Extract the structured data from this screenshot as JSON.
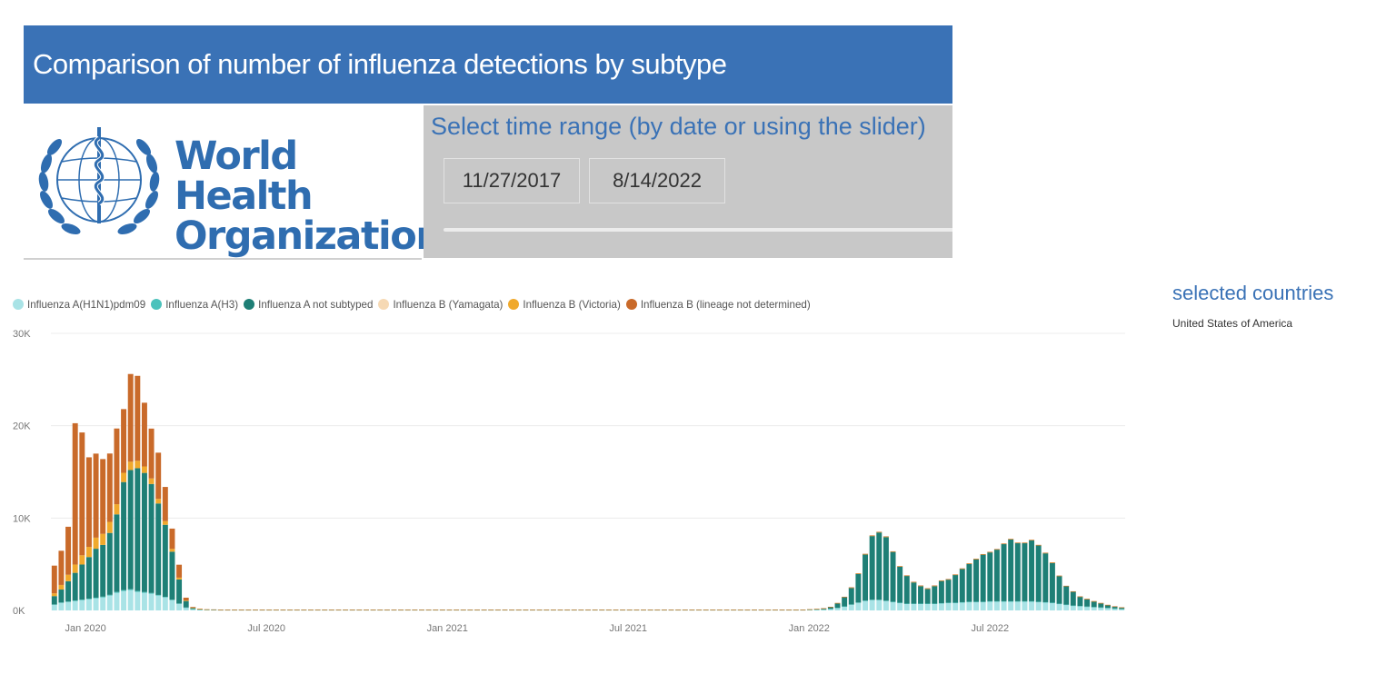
{
  "header": {
    "title": "Comparison of  number of influenza detections by subtype"
  },
  "logo": {
    "line1": "World Health",
    "line2": "Organization"
  },
  "slicer": {
    "title": "Select time range (by date or using the slider)",
    "start_date": "11/27/2017",
    "end_date": "8/14/2022"
  },
  "selected": {
    "title": "selected countries",
    "country": "United States of America"
  },
  "colors": {
    "header": "#3A72B6",
    "panel": "#C8C8C8"
  },
  "chart_data": {
    "type": "bar",
    "stacked": true,
    "series": [
      {
        "name": "Influenza A(H1N1)pdm09",
        "color": "#A9E3E6"
      },
      {
        "name": "Influenza A(H3)",
        "color": "#4CC2BC"
      },
      {
        "name": "Influenza A not subtyped",
        "color": "#1E7F76"
      },
      {
        "name": "Influenza B (Yamagata)",
        "color": "#F6D9B4"
      },
      {
        "name": "Influenza B (Victoria)",
        "color": "#F0A92C"
      },
      {
        "name": "Influenza B (lineage not determined)",
        "color": "#C96A2A"
      }
    ],
    "yticks": [
      {
        "value": 0,
        "label": "0K"
      },
      {
        "value": 10000,
        "label": "10K"
      },
      {
        "value": 20000,
        "label": "20K"
      },
      {
        "value": 30000,
        "label": "30K"
      }
    ],
    "ylim": [
      0,
      30000
    ],
    "xticks": [
      "Jan 2020",
      "Jul 2020",
      "Jan 2021",
      "Jul 2021",
      "Jan 2022",
      "Jul 2022"
    ],
    "grid": true,
    "legend_position": "top",
    "bars": [
      [
        600,
        50,
        900,
        0,
        300,
        3000
      ],
      [
        800,
        60,
        1400,
        0,
        500,
        3700
      ],
      [
        900,
        60,
        2200,
        0,
        700,
        5200
      ],
      [
        1000,
        70,
        3000,
        0,
        900,
        15300
      ],
      [
        1100,
        70,
        3800,
        0,
        1000,
        13300
      ],
      [
        1200,
        80,
        4500,
        0,
        1100,
        9700
      ],
      [
        1300,
        80,
        5300,
        0,
        1200,
        9100
      ],
      [
        1400,
        90,
        5600,
        0,
        1200,
        8100
      ],
      [
        1600,
        90,
        6700,
        0,
        1200,
        7400
      ],
      [
        1900,
        100,
        8400,
        0,
        1100,
        8200
      ],
      [
        2100,
        100,
        11700,
        0,
        1000,
        6900
      ],
      [
        2200,
        100,
        12900,
        0,
        900,
        9500
      ],
      [
        2000,
        100,
        13300,
        0,
        800,
        9200
      ],
      [
        1900,
        90,
        12900,
        0,
        700,
        6900
      ],
      [
        1800,
        90,
        11800,
        0,
        600,
        5400
      ],
      [
        1600,
        80,
        9900,
        0,
        500,
        5000
      ],
      [
        1400,
        70,
        7800,
        0,
        400,
        3700
      ],
      [
        1100,
        60,
        5200,
        0,
        300,
        2200
      ],
      [
        700,
        50,
        2600,
        0,
        200,
        1400
      ],
      [
        300,
        20,
        700,
        0,
        60,
        300
      ],
      [
        150,
        10,
        100,
        0,
        30,
        80
      ],
      [
        80,
        10,
        50,
        0,
        10,
        40
      ],
      [
        60,
        5,
        30,
        0,
        10,
        20
      ],
      [
        50,
        5,
        30,
        0,
        10,
        15
      ],
      [
        40,
        5,
        20,
        0,
        10,
        10
      ],
      [
        40,
        5,
        20,
        0,
        10,
        10
      ],
      [
        40,
        5,
        20,
        0,
        10,
        10
      ],
      [
        40,
        5,
        20,
        0,
        10,
        10
      ],
      [
        40,
        5,
        20,
        0,
        10,
        10
      ],
      [
        40,
        5,
        20,
        0,
        10,
        10
      ],
      [
        40,
        5,
        20,
        0,
        10,
        10
      ],
      [
        40,
        5,
        20,
        0,
        10,
        10
      ],
      [
        40,
        5,
        20,
        0,
        10,
        10
      ],
      [
        40,
        5,
        20,
        0,
        10,
        10
      ],
      [
        40,
        5,
        20,
        0,
        10,
        10
      ],
      [
        40,
        5,
        20,
        0,
        10,
        10
      ],
      [
        40,
        5,
        20,
        0,
        10,
        10
      ],
      [
        40,
        5,
        20,
        0,
        10,
        10
      ],
      [
        40,
        5,
        20,
        0,
        10,
        10
      ],
      [
        40,
        5,
        20,
        0,
        10,
        10
      ],
      [
        40,
        5,
        20,
        0,
        10,
        10
      ],
      [
        40,
        5,
        20,
        0,
        10,
        10
      ],
      [
        40,
        5,
        20,
        0,
        10,
        10
      ],
      [
        40,
        5,
        20,
        0,
        10,
        10
      ],
      [
        40,
        5,
        20,
        0,
        10,
        10
      ],
      [
        40,
        5,
        20,
        0,
        10,
        10
      ],
      [
        40,
        5,
        20,
        0,
        10,
        10
      ],
      [
        40,
        5,
        20,
        0,
        10,
        10
      ],
      [
        40,
        5,
        20,
        0,
        10,
        10
      ],
      [
        40,
        5,
        20,
        0,
        10,
        10
      ],
      [
        40,
        5,
        20,
        0,
        10,
        10
      ],
      [
        40,
        5,
        20,
        0,
        10,
        10
      ],
      [
        40,
        5,
        20,
        0,
        10,
        10
      ],
      [
        40,
        5,
        20,
        0,
        10,
        10
      ],
      [
        40,
        5,
        20,
        0,
        10,
        10
      ],
      [
        40,
        5,
        20,
        0,
        10,
        10
      ],
      [
        40,
        5,
        20,
        0,
        10,
        10
      ],
      [
        40,
        5,
        20,
        0,
        10,
        10
      ],
      [
        40,
        5,
        20,
        0,
        10,
        10
      ],
      [
        40,
        5,
        20,
        0,
        10,
        10
      ],
      [
        40,
        5,
        20,
        0,
        10,
        10
      ],
      [
        40,
        5,
        20,
        0,
        10,
        10
      ],
      [
        40,
        5,
        20,
        0,
        10,
        10
      ],
      [
        40,
        5,
        20,
        0,
        10,
        10
      ],
      [
        40,
        5,
        20,
        0,
        10,
        10
      ],
      [
        40,
        5,
        20,
        0,
        10,
        10
      ],
      [
        40,
        5,
        20,
        0,
        10,
        10
      ],
      [
        40,
        5,
        20,
        0,
        10,
        10
      ],
      [
        40,
        5,
        20,
        0,
        10,
        10
      ],
      [
        40,
        5,
        20,
        0,
        10,
        10
      ],
      [
        40,
        5,
        20,
        0,
        10,
        10
      ],
      [
        40,
        5,
        20,
        0,
        10,
        10
      ],
      [
        40,
        5,
        20,
        0,
        10,
        10
      ],
      [
        40,
        5,
        20,
        0,
        10,
        10
      ],
      [
        40,
        5,
        20,
        0,
        10,
        10
      ],
      [
        40,
        5,
        20,
        0,
        10,
        10
      ],
      [
        40,
        5,
        20,
        0,
        10,
        10
      ],
      [
        40,
        5,
        20,
        0,
        10,
        10
      ],
      [
        40,
        5,
        20,
        0,
        10,
        10
      ],
      [
        40,
        5,
        20,
        0,
        10,
        10
      ],
      [
        40,
        5,
        20,
        0,
        10,
        10
      ],
      [
        40,
        5,
        20,
        0,
        10,
        10
      ],
      [
        40,
        5,
        20,
        0,
        10,
        10
      ],
      [
        40,
        5,
        20,
        0,
        10,
        10
      ],
      [
        40,
        5,
        20,
        0,
        10,
        10
      ],
      [
        40,
        5,
        20,
        0,
        10,
        10
      ],
      [
        40,
        5,
        20,
        0,
        10,
        10
      ],
      [
        40,
        5,
        20,
        0,
        10,
        10
      ],
      [
        40,
        5,
        20,
        0,
        10,
        10
      ],
      [
        40,
        5,
        20,
        0,
        10,
        10
      ],
      [
        40,
        5,
        20,
        0,
        10,
        10
      ],
      [
        40,
        5,
        20,
        0,
        10,
        10
      ],
      [
        40,
        5,
        20,
        0,
        10,
        10
      ],
      [
        40,
        5,
        20,
        0,
        10,
        10
      ],
      [
        40,
        5,
        20,
        0,
        10,
        10
      ],
      [
        40,
        5,
        20,
        0,
        10,
        10
      ],
      [
        40,
        5,
        20,
        0,
        10,
        10
      ],
      [
        40,
        5,
        20,
        0,
        10,
        10
      ],
      [
        40,
        5,
        20,
        0,
        10,
        10
      ],
      [
        40,
        5,
        20,
        0,
        10,
        10
      ],
      [
        40,
        5,
        20,
        0,
        10,
        10
      ],
      [
        40,
        5,
        20,
        0,
        10,
        10
      ],
      [
        40,
        5,
        20,
        0,
        10,
        10
      ],
      [
        40,
        5,
        20,
        0,
        10,
        10
      ],
      [
        40,
        5,
        20,
        0,
        10,
        10
      ],
      [
        40,
        5,
        20,
        0,
        10,
        10
      ],
      [
        40,
        5,
        20,
        0,
        10,
        10
      ],
      [
        40,
        5,
        20,
        0,
        10,
        10
      ],
      [
        40,
        5,
        20,
        0,
        10,
        10
      ],
      [
        60,
        5,
        40,
        0,
        10,
        10
      ],
      [
        80,
        10,
        60,
        0,
        10,
        10
      ],
      [
        100,
        10,
        100,
        0,
        10,
        10
      ],
      [
        150,
        20,
        200,
        0,
        10,
        10
      ],
      [
        250,
        30,
        500,
        0,
        10,
        20
      ],
      [
        400,
        40,
        1000,
        0,
        20,
        20
      ],
      [
        600,
        50,
        1800,
        0,
        20,
        30
      ],
      [
        800,
        60,
        3100,
        0,
        30,
        30
      ],
      [
        1000,
        60,
        5000,
        0,
        30,
        40
      ],
      [
        1100,
        60,
        6900,
        0,
        30,
        40
      ],
      [
        1100,
        50,
        7300,
        0,
        30,
        40
      ],
      [
        1000,
        50,
        6900,
        0,
        30,
        40
      ],
      [
        900,
        40,
        5400,
        0,
        30,
        30
      ],
      [
        800,
        40,
        3900,
        0,
        30,
        30
      ],
      [
        700,
        40,
        3000,
        0,
        30,
        30
      ],
      [
        700,
        40,
        2300,
        0,
        30,
        30
      ],
      [
        700,
        40,
        1900,
        0,
        30,
        30
      ],
      [
        700,
        40,
        1600,
        0,
        30,
        30
      ],
      [
        700,
        40,
        1900,
        0,
        30,
        30
      ],
      [
        750,
        40,
        2400,
        0,
        30,
        30
      ],
      [
        800,
        40,
        2500,
        0,
        30,
        30
      ],
      [
        800,
        40,
        3000,
        0,
        30,
        30
      ],
      [
        850,
        40,
        3600,
        0,
        30,
        30
      ],
      [
        900,
        40,
        4100,
        0,
        30,
        30
      ],
      [
        900,
        40,
        4600,
        0,
        30,
        30
      ],
      [
        900,
        40,
        5100,
        0,
        30,
        30
      ],
      [
        950,
        40,
        5300,
        0,
        30,
        30
      ],
      [
        950,
        40,
        5600,
        0,
        30,
        30
      ],
      [
        950,
        40,
        6200,
        0,
        30,
        30
      ],
      [
        950,
        40,
        6700,
        0,
        30,
        30
      ],
      [
        950,
        40,
        6300,
        0,
        30,
        30
      ],
      [
        950,
        40,
        6300,
        0,
        30,
        30
      ],
      [
        950,
        40,
        6600,
        0,
        30,
        30
      ],
      [
        900,
        40,
        6100,
        0,
        30,
        30
      ],
      [
        850,
        40,
        5300,
        0,
        30,
        30
      ],
      [
        800,
        40,
        4300,
        0,
        30,
        30
      ],
      [
        700,
        30,
        3000,
        0,
        20,
        20
      ],
      [
        600,
        30,
        2000,
        0,
        20,
        20
      ],
      [
        500,
        30,
        1500,
        0,
        20,
        20
      ],
      [
        450,
        30,
        1000,
        0,
        20,
        20
      ],
      [
        400,
        20,
        800,
        0,
        20,
        20
      ],
      [
        350,
        20,
        600,
        0,
        20,
        20
      ],
      [
        300,
        20,
        450,
        0,
        20,
        20
      ],
      [
        250,
        20,
        300,
        0,
        20,
        20
      ],
      [
        200,
        10,
        200,
        0,
        20,
        20
      ],
      [
        150,
        10,
        150,
        0,
        10,
        10
      ]
    ]
  }
}
